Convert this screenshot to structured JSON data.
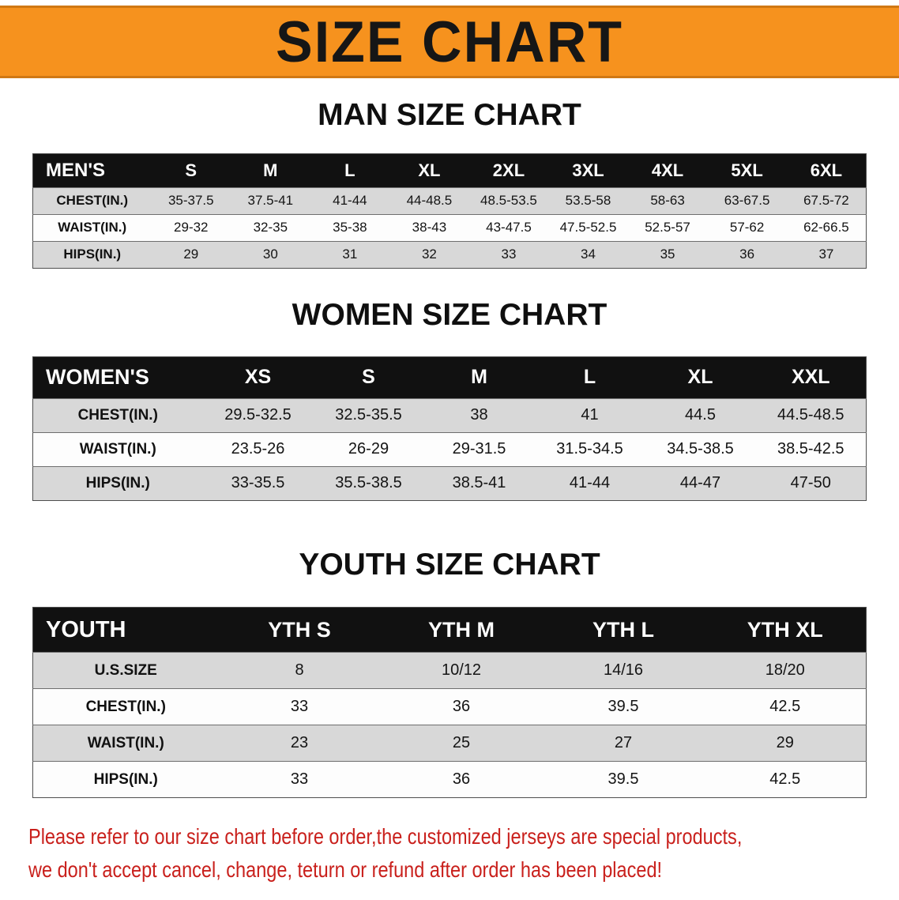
{
  "theme": {
    "banner_bg": "#f6921e",
    "header_bg": "#111111",
    "row_stripe": "#d8d8d8",
    "disclaimer_color": "#c9201c"
  },
  "banner": {
    "title": "SIZE CHART"
  },
  "men": {
    "heading": "MAN SIZE CHART",
    "table": {
      "corner": "MEN'S",
      "columns": [
        "S",
        "M",
        "L",
        "XL",
        "2XL",
        "3XL",
        "4XL",
        "5XL",
        "6XL"
      ],
      "rows": [
        {
          "label": "CHEST(IN.)",
          "values": [
            "35-37.5",
            "37.5-41",
            "41-44",
            "44-48.5",
            "48.5-53.5",
            "53.5-58",
            "58-63",
            "63-67.5",
            "67.5-72"
          ]
        },
        {
          "label": "WAIST(IN.)",
          "values": [
            "29-32",
            "32-35",
            "35-38",
            "38-43",
            "43-47.5",
            "47.5-52.5",
            "52.5-57",
            "57-62",
            "62-66.5"
          ]
        },
        {
          "label": "HIPS(IN.)",
          "values": [
            "29",
            "30",
            "31",
            "32",
            "33",
            "34",
            "35",
            "36",
            "37"
          ]
        }
      ]
    }
  },
  "women": {
    "heading": "WOMEN SIZE CHART",
    "table": {
      "corner": "WOMEN'S",
      "columns": [
        "XS",
        "S",
        "M",
        "L",
        "XL",
        "XXL"
      ],
      "rows": [
        {
          "label": "CHEST(IN.)",
          "values": [
            "29.5-32.5",
            "32.5-35.5",
            "38",
            "41",
            "44.5",
            "44.5-48.5"
          ]
        },
        {
          "label": "WAIST(IN.)",
          "values": [
            "23.5-26",
            "26-29",
            "29-31.5",
            "31.5-34.5",
            "34.5-38.5",
            "38.5-42.5"
          ]
        },
        {
          "label": "HIPS(IN.)",
          "values": [
            "33-35.5",
            "35.5-38.5",
            "38.5-41",
            "41-44",
            "44-47",
            "47-50"
          ]
        }
      ]
    }
  },
  "youth": {
    "heading": "YOUTH SIZE CHART",
    "table": {
      "corner": "YOUTH",
      "columns": [
        "YTH S",
        "YTH M",
        "YTH L",
        "YTH XL"
      ],
      "rows": [
        {
          "label": "U.S.SIZE",
          "values": [
            "8",
            "10/12",
            "14/16",
            "18/20"
          ]
        },
        {
          "label": "CHEST(IN.)",
          "values": [
            "33",
            "36",
            "39.5",
            "42.5"
          ]
        },
        {
          "label": "WAIST(IN.)",
          "values": [
            "23",
            "25",
            "27",
            "29"
          ]
        },
        {
          "label": "HIPS(IN.)",
          "values": [
            "33",
            "36",
            "39.5",
            "42.5"
          ]
        }
      ]
    }
  },
  "disclaimer": {
    "line1": "Please refer to our size chart before order,the customized jerseys are special products,",
    "line2": "we don't accept cancel, change, teturn or refund after order has been placed!"
  }
}
